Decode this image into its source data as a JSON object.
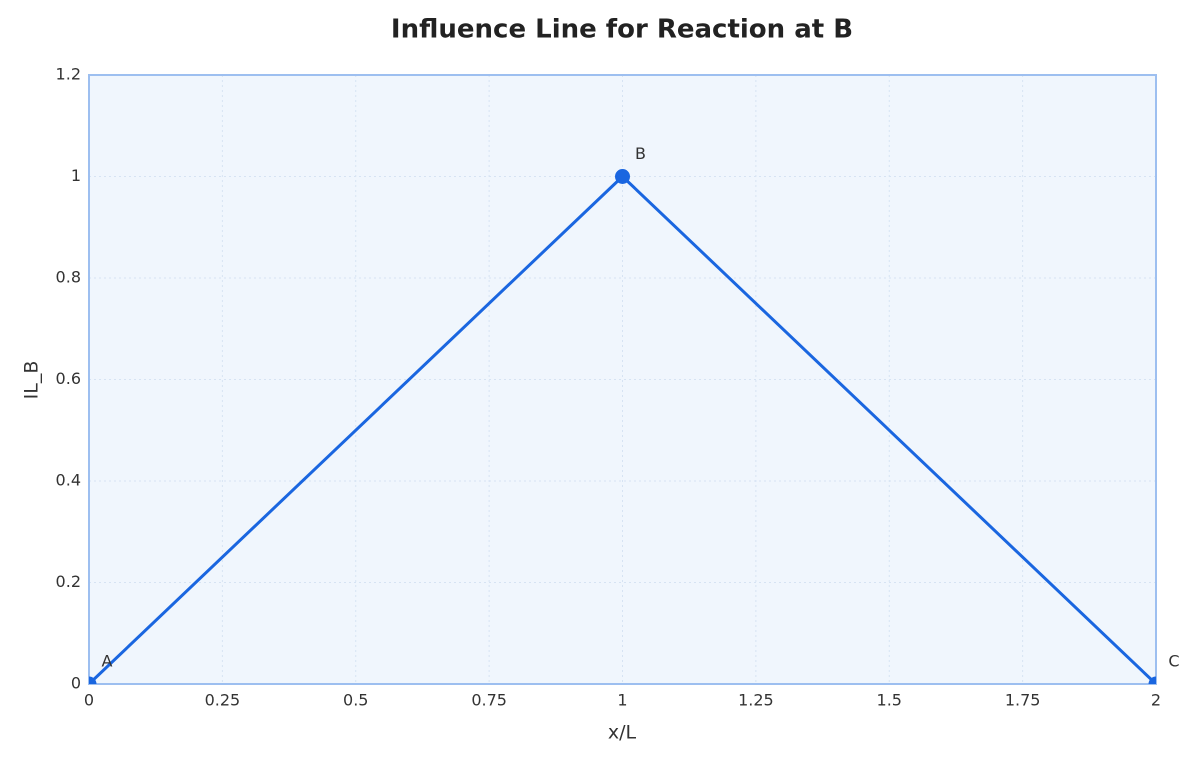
{
  "chart_data": {
    "type": "line",
    "title": "Influence Line for Reaction at B",
    "xlabel": "x/L",
    "ylabel": "IL_B",
    "x": [
      0,
      1,
      2
    ],
    "values": [
      0,
      1,
      0
    ],
    "point_labels": [
      "A",
      "B",
      "C"
    ],
    "color": "#1a66e0",
    "xlim": [
      0,
      2
    ],
    "xticks": [
      0,
      0.25,
      0.5,
      0.75,
      1,
      1.25,
      1.5,
      1.75,
      2
    ],
    "ylim": [
      0,
      1.2
    ],
    "yticks": [
      0,
      0.2,
      0.4,
      0.6,
      0.8,
      1,
      1.2
    ],
    "grid": true
  }
}
